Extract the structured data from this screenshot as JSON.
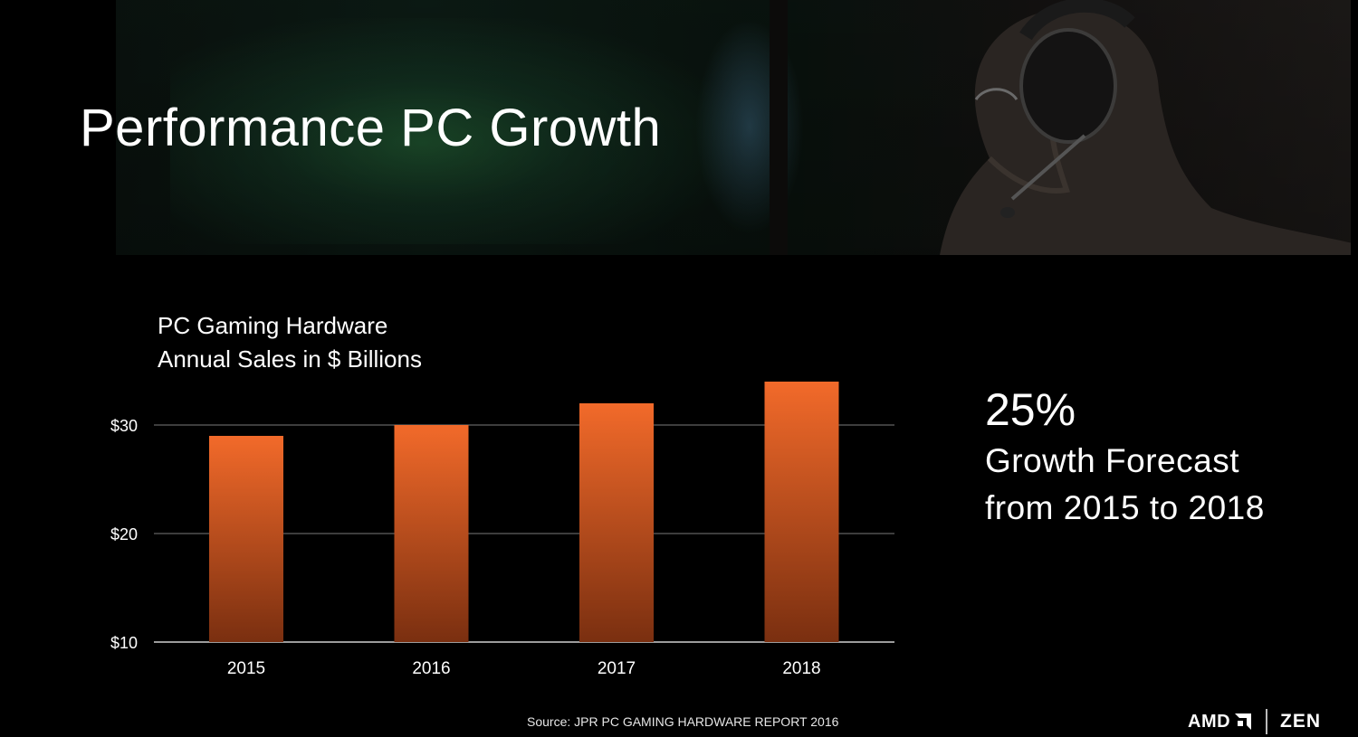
{
  "slide": {
    "title": "Performance PC Growth",
    "source": "Source: JPR PC GAMING HARDWARE REPORT 2016"
  },
  "stat": {
    "value": "25%",
    "line1": "Growth Forecast",
    "line2": "from 2015 to 2018"
  },
  "logos": {
    "amd": "AMD",
    "zen": "ZEN"
  },
  "colors": {
    "bar_top": "#f26a2a",
    "bar_bottom": "#7a2f10",
    "background": "#000000"
  },
  "chart_data": {
    "type": "bar",
    "title_lines": [
      "PC Gaming Hardware",
      "Annual Sales in $ Billions"
    ],
    "categories": [
      "2015",
      "2016",
      "2017",
      "2018"
    ],
    "values": [
      29,
      30,
      32,
      34
    ],
    "ylim": [
      10,
      34
    ],
    "yticks": [
      {
        "value": 10,
        "label": "$10"
      },
      {
        "value": 20,
        "label": "$20"
      },
      {
        "value": 30,
        "label": "$30"
      }
    ],
    "grid": true,
    "xlabel": "",
    "ylabel": ""
  }
}
